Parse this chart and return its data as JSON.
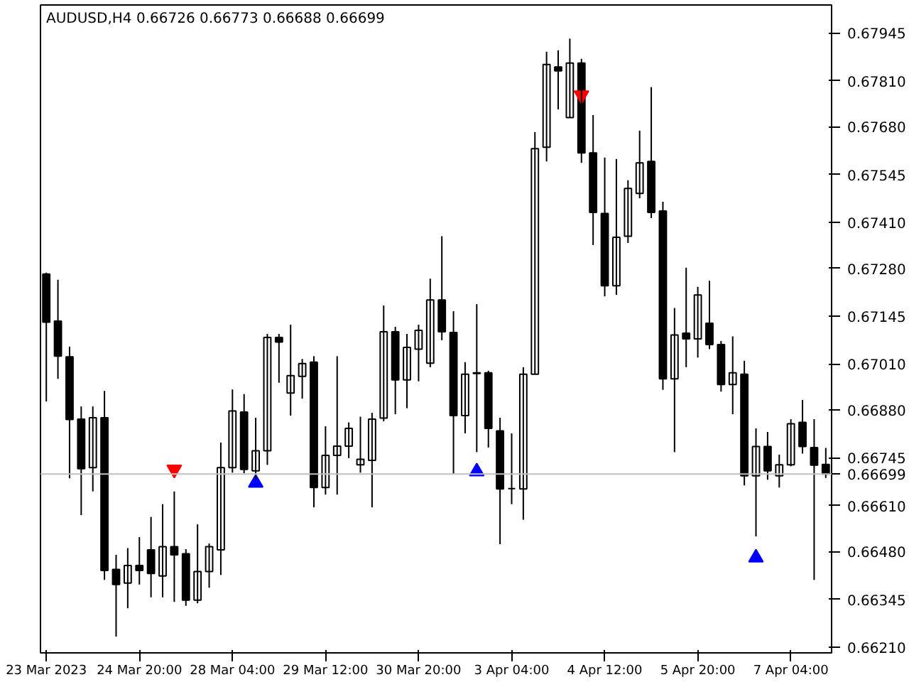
{
  "chart_data": {
    "type": "candlestick",
    "title": "AUDUSD,H4  0.66726 0.66773 0.66688 0.66699",
    "categories": [
      "23 Mar 2023",
      null,
      null,
      null,
      null,
      null,
      null,
      null,
      "24 Mar 20:00",
      null,
      null,
      null,
      null,
      null,
      null,
      null,
      "28 Mar 04:00",
      null,
      null,
      null,
      null,
      null,
      null,
      null,
      "29 Mar 12:00",
      null,
      null,
      null,
      null,
      null,
      null,
      null,
      "30 Mar 20:00",
      null,
      null,
      null,
      null,
      null,
      null,
      null,
      "3 Apr 04:00",
      null,
      null,
      null,
      null,
      null,
      null,
      null,
      "4 Apr 12:00",
      null,
      null,
      null,
      null,
      null,
      null,
      null,
      "5 Apr 20:00",
      null,
      null,
      null,
      null,
      null,
      null,
      null,
      "7 Apr 04:00",
      null,
      null,
      null
    ],
    "ohlc": [
      [
        0.67264,
        0.67268,
        0.66904,
        0.67128
      ],
      [
        0.67131,
        0.67248,
        0.66968,
        0.67032
      ],
      [
        0.6703,
        0.67059,
        0.66687,
        0.66853
      ],
      [
        0.66854,
        0.6689,
        0.66583,
        0.66714
      ],
      [
        0.66717,
        0.6689,
        0.6665,
        0.66858
      ],
      [
        0.66858,
        0.66934,
        0.664,
        0.66427
      ],
      [
        0.6643,
        0.66471,
        0.6624,
        0.66387
      ],
      [
        0.66391,
        0.6649,
        0.6632,
        0.66441
      ],
      [
        0.66441,
        0.66521,
        0.66387,
        0.66427
      ],
      [
        0.66485,
        0.66578,
        0.66351,
        0.66418
      ],
      [
        0.66411,
        0.66614,
        0.66351,
        0.66494
      ],
      [
        0.66494,
        0.6665,
        0.66338,
        0.66471
      ],
      [
        0.66474,
        0.66487,
        0.66327,
        0.66343
      ],
      [
        0.66343,
        0.66557,
        0.66334,
        0.66424
      ],
      [
        0.66424,
        0.66503,
        0.66378,
        0.66494
      ],
      [
        0.66485,
        0.66788,
        0.66414,
        0.66717
      ],
      [
        0.66717,
        0.66938,
        0.66703,
        0.66877
      ],
      [
        0.66874,
        0.66925,
        0.66701,
        0.66712
      ],
      [
        0.66708,
        0.66858,
        0.66685,
        0.66765
      ],
      [
        0.66765,
        0.67095,
        0.66725,
        0.67085
      ],
      [
        0.67085,
        0.67095,
        0.66957,
        0.67072
      ],
      [
        0.66928,
        0.67121,
        0.66864,
        0.66977
      ],
      [
        0.66975,
        0.67024,
        0.66912,
        0.67011
      ],
      [
        0.67015,
        0.67032,
        0.66605,
        0.66661
      ],
      [
        0.66661,
        0.66834,
        0.66641,
        0.66752
      ],
      [
        0.66752,
        0.67032,
        0.66641,
        0.66778
      ],
      [
        0.66778,
        0.66845,
        0.66744,
        0.66828
      ],
      [
        0.66725,
        0.66861,
        0.66703,
        0.66741
      ],
      [
        0.66738,
        0.66872,
        0.66605,
        0.66854
      ],
      [
        0.66857,
        0.67175,
        0.66848,
        0.67101
      ],
      [
        0.67101,
        0.67115,
        0.66868,
        0.66965
      ],
      [
        0.66965,
        0.67095,
        0.66885,
        0.67057
      ],
      [
        0.67052,
        0.67121,
        0.66961,
        0.67105
      ],
      [
        0.67012,
        0.67251,
        0.67001,
        0.67191
      ],
      [
        0.67191,
        0.67371,
        0.67077,
        0.67101
      ],
      [
        0.67099,
        0.67159,
        0.66699,
        0.66864
      ],
      [
        0.66864,
        0.67015,
        0.66814,
        0.66981
      ],
      [
        0.66983,
        0.67179,
        0.66761,
        0.66985
      ],
      [
        0.66985,
        0.66991,
        0.66774,
        0.66828
      ],
      [
        0.66821,
        0.66858,
        0.66501,
        0.66657
      ],
      [
        0.66658,
        0.66814,
        0.66614,
        0.66658
      ],
      [
        0.66657,
        0.67001,
        0.6657,
        0.66981
      ],
      [
        0.66981,
        0.67665,
        0.66981,
        0.67618
      ],
      [
        0.67622,
        0.67892,
        0.67582,
        0.67856
      ],
      [
        0.67849,
        0.67896,
        0.67729,
        0.67838
      ],
      [
        0.67706,
        0.67929,
        0.67706,
        0.6786
      ],
      [
        0.6786,
        0.67872,
        0.67578,
        0.67606
      ],
      [
        0.67606,
        0.67713,
        0.67346,
        0.67438
      ],
      [
        0.67435,
        0.67593,
        0.67201,
        0.67231
      ],
      [
        0.67231,
        0.67589,
        0.67205,
        0.67368
      ],
      [
        0.67371,
        0.67529,
        0.67352,
        0.67506
      ],
      [
        0.67492,
        0.67669,
        0.67478,
        0.67578
      ],
      [
        0.67582,
        0.67792,
        0.67422,
        0.67438
      ],
      [
        0.67442,
        0.67468,
        0.66937,
        0.66968
      ],
      [
        0.66968,
        0.67168,
        0.66761,
        0.67092
      ],
      [
        0.67097,
        0.67282,
        0.67001,
        0.67081
      ],
      [
        0.67081,
        0.67228,
        0.67028,
        0.67205
      ],
      [
        0.67125,
        0.67245,
        0.67052,
        0.67065
      ],
      [
        0.67065,
        0.67075,
        0.66932,
        0.66952
      ],
      [
        0.66952,
        0.67088,
        0.66868,
        0.66985
      ],
      [
        0.66981,
        0.67019,
        0.66667,
        0.66694
      ],
      [
        0.66694,
        0.66828,
        0.66523,
        0.66777
      ],
      [
        0.66777,
        0.66818,
        0.66683,
        0.66708
      ],
      [
        0.66694,
        0.66754,
        0.66661,
        0.66725
      ],
      [
        0.66725,
        0.66854,
        0.66721,
        0.66841
      ],
      [
        0.66845,
        0.66908,
        0.66757,
        0.66777
      ],
      [
        0.66774,
        0.66854,
        0.664,
        0.66724
      ],
      [
        0.66726,
        0.66773,
        0.66688,
        0.66699
      ]
    ],
    "series": [
      {
        "type": "scatter",
        "marker": "triangle_down",
        "color": "#ff0000",
        "values": [
          null,
          null,
          null,
          null,
          null,
          null,
          null,
          null,
          null,
          null,
          null,
          0.66712,
          null,
          null,
          null,
          null,
          null,
          null,
          null,
          null,
          null,
          null,
          null,
          null,
          null,
          null,
          null,
          null,
          null,
          null,
          null,
          null,
          null,
          null,
          null,
          null,
          null,
          null,
          null,
          null,
          null,
          null,
          null,
          null,
          null,
          null,
          0.67769,
          null,
          null,
          null,
          null,
          null,
          null,
          null,
          null,
          null,
          null,
          null,
          null,
          null,
          null,
          null,
          null,
          null,
          null,
          null,
          null,
          null
        ]
      },
      {
        "type": "scatter",
        "marker": "triangle",
        "color": "#0000ff",
        "values": [
          null,
          null,
          null,
          null,
          null,
          null,
          null,
          null,
          null,
          null,
          null,
          null,
          null,
          null,
          null,
          null,
          null,
          null,
          0.66674,
          null,
          null,
          null,
          null,
          null,
          null,
          null,
          null,
          null,
          null,
          null,
          null,
          null,
          null,
          null,
          null,
          null,
          null,
          0.66706,
          null,
          null,
          null,
          null,
          null,
          null,
          null,
          null,
          null,
          null,
          null,
          null,
          null,
          null,
          null,
          null,
          null,
          null,
          null,
          null,
          null,
          null,
          null,
          0.66463,
          null,
          null,
          null,
          null,
          null,
          null
        ]
      }
    ],
    "ylim": [
      0.66194,
      0.68024
    ],
    "yticks": [
      {
        "value": 0.67945,
        "label": "0.67945"
      },
      {
        "value": 0.6781,
        "label": "0.67810"
      },
      {
        "value": 0.6768,
        "label": "0.67680"
      },
      {
        "value": 0.67545,
        "label": "0.67545"
      },
      {
        "value": 0.6741,
        "label": "0.67410"
      },
      {
        "value": 0.6728,
        "label": "0.67280"
      },
      {
        "value": 0.67145,
        "label": "0.67145"
      },
      {
        "value": 0.6701,
        "label": "0.67010"
      },
      {
        "value": 0.6688,
        "label": "0.66880"
      },
      {
        "value": 0.66745,
        "label": "0.66745"
      },
      {
        "value": 0.6661,
        "label": "0.66610"
      },
      {
        "value": 0.6648,
        "label": "0.66480"
      },
      {
        "value": 0.66345,
        "label": "0.66345"
      },
      {
        "value": 0.6621,
        "label": "0.66210"
      }
    ],
    "ref_lines": [
      {
        "axis": "y",
        "value": 0.66699,
        "label": "0.66699",
        "color": "#c0c0c0"
      }
    ],
    "grid": false
  }
}
